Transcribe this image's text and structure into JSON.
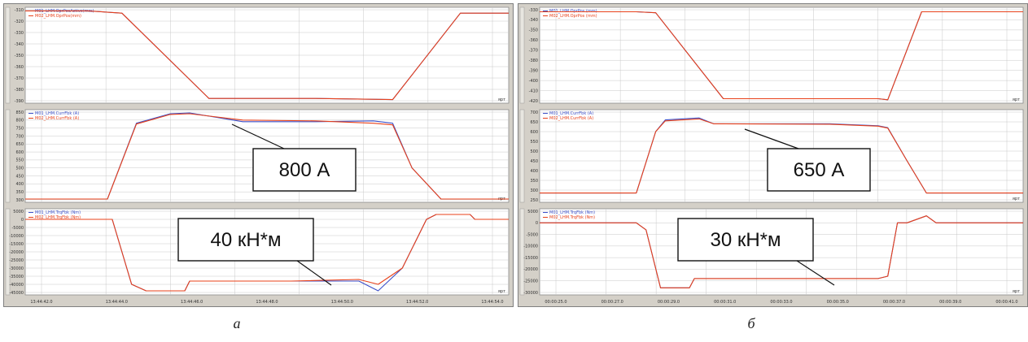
{
  "colors": {
    "blue": "#3b4fc8",
    "red": "#e8411a",
    "grid": "#c8c8c8",
    "plot_bg": "#ffffff",
    "panel_bg": "#d4d0c8"
  },
  "captions": {
    "a": "а",
    "b": "б"
  },
  "chart_data": [
    {
      "panel": "а",
      "type": "line",
      "charts": [
        {
          "id": "position",
          "ylim": [
            -390,
            -310
          ],
          "yticks": [
            "-310",
            "-320",
            "-330",
            "-340",
            "-350",
            "-360",
            "-370",
            "-380",
            "-390"
          ],
          "unit_tag": "ярт",
          "series": [
            {
              "name": "M01_LHM.OprPosActive(mm)",
              "color": "blue",
              "x": [
                0,
                0.13,
                0.2,
                0.38,
                0.6,
                0.76,
                0.9,
                1
              ],
              "y": [
                -311,
                -311,
                -313,
                -388,
                -388,
                -389,
                -313,
                -313
              ]
            },
            {
              "name": "M02_LHM.OprPos(mm)",
              "color": "red",
              "x": [
                0,
                0.13,
                0.2,
                0.38,
                0.6,
                0.76,
                0.9,
                1
              ],
              "y": [
                -311,
                -311,
                -313,
                -388,
                -388,
                -389,
                -313,
                -313
              ]
            }
          ]
        },
        {
          "id": "current",
          "ylim": [
            300,
            850
          ],
          "yticks": [
            "850",
            "800",
            "750",
            "700",
            "650",
            "600",
            "550",
            "500",
            "450",
            "400",
            "350",
            "300"
          ],
          "unit_tag": "ярт",
          "callout": "800 А",
          "series": [
            {
              "name": "M01_LHM.CurrFbk (A)",
              "color": "blue",
              "x": [
                0,
                0.17,
                0.23,
                0.3,
                0.34,
                0.45,
                0.6,
                0.72,
                0.76,
                0.8,
                0.86,
                1
              ],
              "y": [
                305,
                305,
                780,
                840,
                845,
                790,
                790,
                795,
                780,
                500,
                305,
                305
              ]
            },
            {
              "name": "M02_LHM.CurrFbk (A)",
              "color": "red",
              "x": [
                0,
                0.17,
                0.23,
                0.3,
                0.34,
                0.45,
                0.6,
                0.72,
                0.76,
                0.8,
                0.86,
                1
              ],
              "y": [
                305,
                305,
                775,
                835,
                840,
                800,
                795,
                780,
                770,
                500,
                305,
                305
              ]
            }
          ]
        },
        {
          "id": "torque",
          "ylim": [
            -45000,
            5000
          ],
          "yticks": [
            "5000",
            "0",
            "-5000",
            "-10000",
            "-15000",
            "-20000",
            "-25000",
            "-30000",
            "-35000",
            "-40000",
            "-45000"
          ],
          "xticks": [
            "13:44:42.0",
            "13:44:44.0",
            "13:44:46.0",
            "13:44:48.0",
            "13:44:50.0",
            "13:44:52.0",
            "13:44:54.0"
          ],
          "unit_tag": "ярт",
          "callout": "40 кН*м",
          "series": [
            {
              "name": "M01_LHM.TrqFbk (Nm)",
              "color": "blue",
              "x": [
                0,
                0.18,
                0.22,
                0.25,
                0.33,
                0.34,
                0.55,
                0.69,
                0.73,
                0.78,
                0.83,
                0.85,
                0.92,
                0.93,
                1
              ],
              "y": [
                0,
                0,
                -40000,
                -44000,
                -44000,
                -38000,
                -38000,
                -38000,
                -44000,
                -30000,
                0,
                3000,
                3000,
                0,
                0
              ]
            },
            {
              "name": "M02_LHM.TrqFbk (Nm)",
              "color": "red",
              "x": [
                0,
                0.18,
                0.22,
                0.25,
                0.33,
                0.34,
                0.55,
                0.69,
                0.73,
                0.78,
                0.83,
                0.85,
                0.92,
                0.93,
                1
              ],
              "y": [
                0,
                0,
                -40000,
                -44000,
                -44000,
                -38000,
                -38000,
                -37000,
                -40000,
                -30000,
                0,
                3000,
                3000,
                0,
                0
              ]
            }
          ]
        }
      ]
    },
    {
      "panel": "б",
      "type": "line",
      "charts": [
        {
          "id": "position",
          "ylim": [
            -420,
            -330
          ],
          "yticks": [
            "-330",
            "-340",
            "-350",
            "-360",
            "-370",
            "-380",
            "-390",
            "-400",
            "-410",
            "-420"
          ],
          "unit_tag": "ярт",
          "series": [
            {
              "name": "M01_LHM.OprPos (mm)",
              "color": "blue",
              "x": [
                0,
                0.2,
                0.24,
                0.38,
                0.7,
                0.72,
                0.79,
                1
              ],
              "y": [
                -332,
                -332,
                -333,
                -418,
                -418,
                -419,
                -332,
                -332
              ]
            },
            {
              "name": "M02_LHM.OprPos (mm)",
              "color": "red",
              "x": [
                0,
                0.2,
                0.24,
                0.38,
                0.7,
                0.72,
                0.79,
                1
              ],
              "y": [
                -332,
                -332,
                -333,
                -418,
                -418,
                -419,
                -332,
                -332
              ]
            }
          ]
        },
        {
          "id": "current",
          "ylim": [
            250,
            700
          ],
          "yticks": [
            "700",
            "650",
            "600",
            "550",
            "500",
            "450",
            "400",
            "350",
            "300",
            "250"
          ],
          "unit_tag": "ярт",
          "callout": "650 А",
          "series": [
            {
              "name": "M01_LHM.CurrFbk (A)",
              "color": "blue",
              "x": [
                0,
                0.2,
                0.24,
                0.26,
                0.33,
                0.36,
                0.6,
                0.7,
                0.72,
                0.76,
                0.8,
                1
              ],
              "y": [
                285,
                285,
                600,
                660,
                670,
                640,
                640,
                630,
                620,
                450,
                285,
                285
              ]
            },
            {
              "name": "M02_LHM.CurrFbk (A)",
              "color": "red",
              "x": [
                0,
                0.2,
                0.24,
                0.26,
                0.33,
                0.36,
                0.6,
                0.7,
                0.72,
                0.76,
                0.8,
                1
              ],
              "y": [
                285,
                285,
                600,
                655,
                665,
                640,
                638,
                628,
                618,
                450,
                285,
                285
              ]
            }
          ]
        },
        {
          "id": "torque",
          "ylim": [
            -30000,
            5000
          ],
          "yticks": [
            "5000",
            "0",
            "-5000",
            "-10000",
            "-15000",
            "-20000",
            "-25000",
            "-30000"
          ],
          "xticks": [
            "00:00:25.0",
            "00:00:27.0",
            "00:00:29.0",
            "00:00:31.0",
            "00:00:33.0",
            "00:00:35.0",
            "00:00:37.0",
            "00:00:39.0",
            "00:00:41.0"
          ],
          "unit_tag": "ярт",
          "callout": "30 кН*м",
          "series": [
            {
              "name": "M01_LHM.TrqFbk (Nm)",
              "color": "blue",
              "x": [
                0,
                0.2,
                0.22,
                0.25,
                0.31,
                0.32,
                0.6,
                0.7,
                0.72,
                0.74,
                0.76,
                0.8,
                0.82,
                1
              ],
              "y": [
                0,
                0,
                -3000,
                -28000,
                -28000,
                -24000,
                -24000,
                -24000,
                -23000,
                0,
                0,
                3000,
                0,
                0
              ]
            },
            {
              "name": "M02_LHM.TrqFbk (Nm)",
              "color": "red",
              "x": [
                0,
                0.2,
                0.22,
                0.25,
                0.31,
                0.32,
                0.6,
                0.7,
                0.72,
                0.74,
                0.76,
                0.8,
                0.82,
                1
              ],
              "y": [
                0,
                0,
                -3000,
                -28000,
                -28000,
                -24000,
                -24000,
                -24000,
                -23000,
                0,
                0,
                3000,
                0,
                0
              ]
            }
          ]
        }
      ]
    }
  ]
}
